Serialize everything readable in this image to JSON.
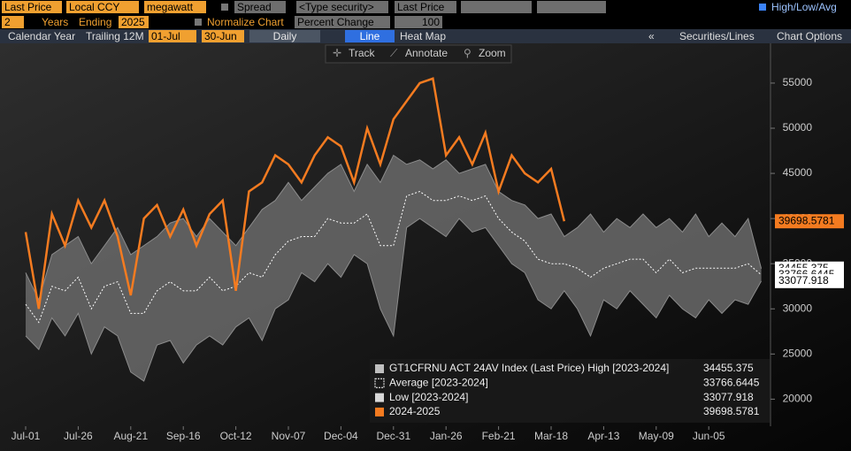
{
  "toolbar": {
    "row1": [
      "Last Price",
      "Local CCY",
      "megawatt",
      "Spread",
      "<Type security>",
      "Last Price",
      "High/Low/Avg"
    ],
    "row2": [
      "2",
      "Years",
      "Ending",
      "2025",
      "Normalize Chart",
      "Percent Change",
      "100"
    ],
    "row3": [
      "Calendar Year",
      "Trailing 12M",
      "01-Jul",
      "30-Jun",
      "Daily",
      "Line",
      "Heat Map",
      "«",
      "Securities/Lines",
      "Chart Options"
    ],
    "chart_tools": [
      "Track",
      "Annotate",
      "Zoom"
    ]
  },
  "chart_data": {
    "type": "line",
    "categories": [
      "Jul-01",
      null,
      null,
      null,
      "Jul-26",
      null,
      null,
      null,
      "Aug-21",
      null,
      null,
      null,
      "Sep-16",
      null,
      null,
      null,
      "Oct-12",
      null,
      null,
      null,
      "Nov-07",
      null,
      null,
      null,
      "Dec-04",
      null,
      null,
      null,
      "Dec-31",
      null,
      null,
      null,
      "Jan-26",
      null,
      null,
      null,
      "Feb-21",
      null,
      null,
      null,
      "Mar-18",
      null,
      null,
      null,
      "Apr-13",
      null,
      null,
      null,
      "May-09",
      null,
      null,
      null,
      "Jun-05",
      null,
      null,
      null,
      null
    ],
    "series": [
      {
        "name": "GT1CFRNU ACT 24AV Index (Last Price) High [2023-2024]",
        "color": "#bfbfbf",
        "values": [
          34000,
          31000,
          36000,
          37000,
          38000,
          35000,
          37000,
          39000,
          36000,
          37000,
          38000,
          39500,
          40000,
          38000,
          40000,
          38500,
          37000,
          39000,
          41000,
          42000,
          44000,
          42000,
          43500,
          45000,
          46000,
          43000,
          46000,
          44000,
          47000,
          46000,
          46500,
          45500,
          46500,
          45000,
          45500,
          46000,
          43000,
          42000,
          41500,
          40000,
          40500,
          38000,
          39000,
          40500,
          38500,
          40000,
          39000,
          40500,
          39000,
          40000,
          38500,
          40500,
          38000,
          39500,
          38000,
          40000,
          34455.375
        ]
      },
      {
        "name": "Average  [2023-2024]",
        "color": "#ffffff",
        "dashed": true,
        "values": [
          30500,
          28500,
          32500,
          32000,
          33500,
          30000,
          32500,
          33000,
          29500,
          29500,
          32000,
          33000,
          32000,
          32000,
          33500,
          32000,
          32500,
          34000,
          33500,
          36000,
          37500,
          38000,
          38000,
          40000,
          39500,
          39500,
          40500,
          37000,
          37000,
          42500,
          43000,
          42000,
          42000,
          42500,
          42000,
          42500,
          40000,
          38500,
          37500,
          35500,
          35000,
          35000,
          34500,
          33500,
          34500,
          35000,
          35500,
          35500,
          34000,
          35500,
          34000,
          34500,
          34500,
          34500,
          34500,
          35000,
          33766.6445
        ]
      },
      {
        "name": "Low  [2023-2024]",
        "color": "#d9d9d9",
        "values": [
          27000,
          25500,
          29000,
          27000,
          29500,
          25000,
          28000,
          27000,
          23000,
          22000,
          26000,
          26500,
          24000,
          26000,
          27000,
          26000,
          28000,
          29000,
          26500,
          30000,
          31000,
          34000,
          33000,
          35000,
          33500,
          36000,
          35000,
          30000,
          27000,
          39000,
          40000,
          39000,
          38000,
          40000,
          38500,
          39000,
          37000,
          35000,
          34000,
          31000,
          30000,
          32000,
          30000,
          27000,
          31000,
          30000,
          32000,
          30500,
          29000,
          31500,
          30000,
          29000,
          31000,
          29500,
          31000,
          30500,
          33077.918
        ]
      },
      {
        "name": "2024-2025",
        "color": "#f47b20",
        "values": [
          38500,
          30000,
          40500,
          37000,
          42000,
          39000,
          42000,
          38000,
          31500,
          40000,
          41500,
          38000,
          41000,
          37000,
          40500,
          42000,
          32000,
          43000,
          44000,
          47000,
          46000,
          44000,
          47000,
          49000,
          48000,
          44000,
          50000,
          46000,
          51000,
          53000,
          55000,
          55500,
          47000,
          49000,
          46000,
          49500,
          43000,
          47000,
          45000,
          44000,
          45500,
          39698.5781,
          null,
          null,
          null,
          null,
          null,
          null,
          null,
          null,
          null,
          null,
          null,
          null,
          null,
          null,
          null
        ]
      }
    ],
    "band": true,
    "band_color": "#6a6a6a",
    "ylim": [
      17000,
      59500
    ],
    "yticks": [
      20000,
      25000,
      30000,
      35000,
      40000,
      45000,
      50000,
      55000
    ],
    "grid": false,
    "legend": "lower right"
  }
}
